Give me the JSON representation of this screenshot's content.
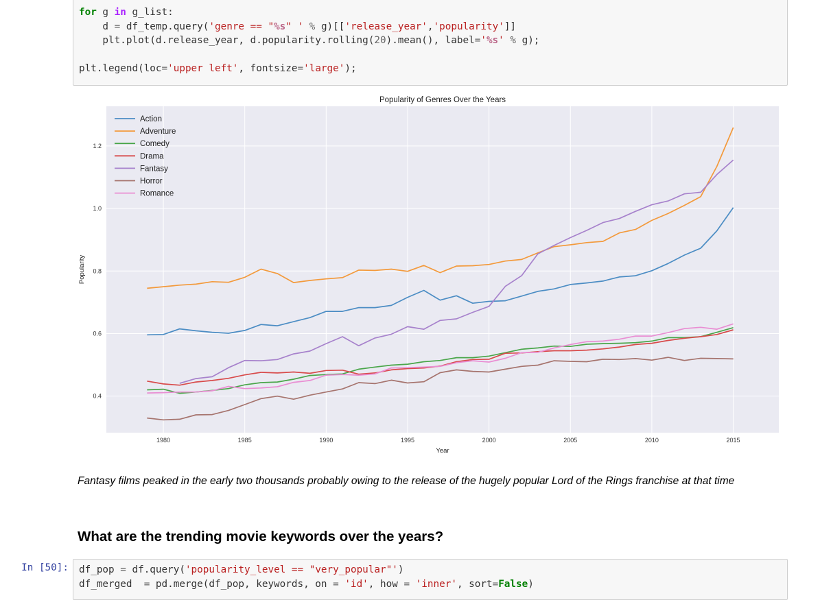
{
  "top_cell": {
    "lines": [
      "for g in g_list:",
      "    d = df_temp.query('genre == \"%s\" ' % g)[['release_year','popularity']]",
      "    plt.plot(d.release_year, d.popularity.rolling(20).mean(), label='%s' % g);",
      "",
      "plt.legend(loc='upper left', fontsize='large');"
    ]
  },
  "chart_data": {
    "type": "line",
    "title": "Popularity of Genres Over the Years",
    "xlabel": "Year",
    "ylabel": "Popularity",
    "xlim": [
      1976.5,
      2017.8
    ],
    "ylim": [
      0.283,
      1.327
    ],
    "xticks": [
      1980,
      1985,
      1990,
      1995,
      2000,
      2005,
      2010,
      2015
    ],
    "yticks": [
      0.4,
      0.6,
      0.8,
      1.0,
      1.2
    ],
    "grid": true,
    "legend_position": "upper-left",
    "x": [
      1979,
      1980,
      1981,
      1982,
      1983,
      1984,
      1985,
      1986,
      1987,
      1988,
      1989,
      1990,
      1991,
      1992,
      1993,
      1994,
      1995,
      1996,
      1997,
      1998,
      1999,
      2000,
      2001,
      2002,
      2003,
      2004,
      2005,
      2006,
      2007,
      2008,
      2009,
      2010,
      2011,
      2012,
      2013,
      2014,
      2015
    ],
    "series": [
      {
        "name": "Action",
        "color": "#4c8dc4",
        "values": [
          0.596,
          0.597,
          0.615,
          0.609,
          0.604,
          0.601,
          0.61,
          0.629,
          0.625,
          0.638,
          0.651,
          0.671,
          0.671,
          0.683,
          0.683,
          0.69,
          0.716,
          0.738,
          0.707,
          0.721,
          0.697,
          0.703,
          0.705,
          0.72,
          0.735,
          0.743,
          0.757,
          0.762,
          0.768,
          0.781,
          0.785,
          0.801,
          0.824,
          0.851,
          0.873,
          0.929,
          1.003
        ]
      },
      {
        "name": "Adventure",
        "color": "#f39a3c",
        "values": [
          0.745,
          0.75,
          0.755,
          0.758,
          0.766,
          0.764,
          0.78,
          0.806,
          0.792,
          0.763,
          0.77,
          0.775,
          0.779,
          0.803,
          0.802,
          0.806,
          0.799,
          0.818,
          0.795,
          0.816,
          0.817,
          0.821,
          0.832,
          0.837,
          0.858,
          0.878,
          0.884,
          0.891,
          0.895,
          0.922,
          0.933,
          0.962,
          0.984,
          1.01,
          1.038,
          1.135,
          1.259
        ]
      },
      {
        "name": "Comedy",
        "color": "#4aa64a",
        "values": [
          0.42,
          0.422,
          0.409,
          0.413,
          0.418,
          0.424,
          0.436,
          0.443,
          0.445,
          0.454,
          0.466,
          0.469,
          0.471,
          0.486,
          0.493,
          0.499,
          0.502,
          0.51,
          0.514,
          0.523,
          0.523,
          0.528,
          0.539,
          0.55,
          0.554,
          0.56,
          0.559,
          0.566,
          0.568,
          0.569,
          0.571,
          0.576,
          0.587,
          0.587,
          0.59,
          0.604,
          0.619
        ]
      },
      {
        "name": "Drama",
        "color": "#d84b4b",
        "values": [
          0.448,
          0.439,
          0.435,
          0.445,
          0.45,
          0.457,
          0.468,
          0.476,
          0.474,
          0.477,
          0.473,
          0.482,
          0.483,
          0.47,
          0.474,
          0.484,
          0.488,
          0.49,
          0.496,
          0.51,
          0.517,
          0.518,
          0.537,
          0.538,
          0.542,
          0.545,
          0.545,
          0.547,
          0.551,
          0.557,
          0.565,
          0.569,
          0.578,
          0.585,
          0.59,
          0.597,
          0.612
        ]
      },
      {
        "name": "Fantasy",
        "color": "#a782cc",
        "values": [
          null,
          null,
          0.441,
          0.456,
          0.462,
          0.491,
          0.514,
          0.513,
          0.517,
          0.535,
          0.544,
          0.568,
          0.59,
          0.561,
          0.586,
          0.598,
          0.622,
          0.614,
          0.642,
          0.647,
          0.668,
          0.687,
          0.751,
          0.785,
          0.855,
          0.882,
          0.907,
          0.93,
          0.955,
          0.968,
          0.991,
          1.012,
          1.024,
          1.047,
          1.052,
          1.109,
          1.155
        ]
      },
      {
        "name": "Horror",
        "color": "#a6746e",
        "values": [
          0.33,
          0.324,
          0.326,
          0.34,
          0.341,
          0.354,
          0.373,
          0.392,
          0.4,
          0.39,
          0.403,
          0.413,
          0.423,
          0.443,
          0.44,
          0.451,
          0.442,
          0.446,
          0.475,
          0.484,
          0.479,
          0.477,
          0.486,
          0.495,
          0.499,
          0.513,
          0.511,
          0.51,
          0.518,
          0.517,
          0.52,
          0.515,
          0.524,
          0.514,
          0.521,
          0.52,
          0.519
        ]
      },
      {
        "name": "Romance",
        "color": "#e98ed3",
        "values": [
          0.41,
          0.411,
          0.413,
          0.413,
          0.417,
          0.431,
          0.424,
          0.426,
          0.43,
          0.444,
          0.45,
          0.467,
          0.469,
          0.467,
          0.471,
          0.49,
          0.491,
          0.493,
          0.495,
          0.507,
          0.513,
          0.509,
          0.521,
          0.539,
          0.54,
          0.554,
          0.565,
          0.574,
          0.576,
          0.582,
          0.592,
          0.592,
          0.603,
          0.616,
          0.62,
          0.614,
          0.631
        ]
      }
    ]
  },
  "markdown_note": "Fantasy films peaked in the early two thousands probably owing to the release of the hugely popular Lord of the Rings franchise at that time",
  "section_heading": "What are the trending movie keywords over the years?",
  "bottom_cell": {
    "prompt": "In [50]:",
    "lines": [
      "df_pop = df.query('popularity_level == \"very_popular\"')",
      "df_merged  = pd.merge(df_pop, keywords, on = 'id', how = 'inner', sort=False)"
    ]
  }
}
